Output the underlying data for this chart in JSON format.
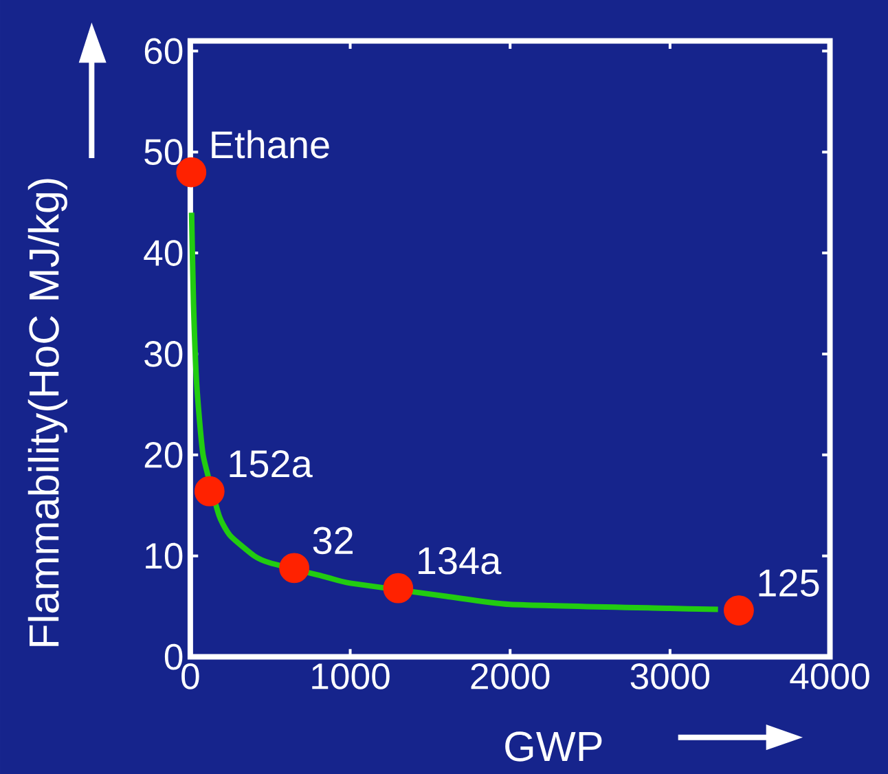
{
  "chart_data": {
    "type": "line",
    "xlabel": "GWP",
    "ylabel": "Flammability(HoC MJ/kg)",
    "xlim": [
      0,
      4000
    ],
    "ylim": [
      0,
      61
    ],
    "xticks": [
      0,
      1000,
      2000,
      3000,
      4000
    ],
    "yticks": [
      0,
      10,
      20,
      30,
      40,
      50,
      60
    ],
    "grid": false,
    "series": [
      {
        "color": "#22cc11",
        "marker": "none",
        "x": [
          8,
          20,
          40,
          80,
          180,
          250,
          400,
          500,
          850,
          1000,
          1600,
          2000,
          3000,
          3300
        ],
        "values": [
          44,
          35,
          27,
          20,
          14,
          12,
          10,
          9.3,
          7.9,
          7.3,
          6,
          5.2,
          4.8,
          4.7
        ]
      },
      {
        "type": "scatter",
        "color": "#ff2200",
        "marker": "circle",
        "x": [
          6,
          120,
          650,
          1300,
          3430
        ],
        "values": [
          48,
          16.4,
          8.8,
          6.8,
          4.6
        ]
      }
    ],
    "annotations": [
      {
        "text": "Ethane",
        "x": 6,
        "y": 48
      },
      {
        "text": "152a",
        "x": 120,
        "y": 16.4
      },
      {
        "text": "32",
        "x": 650,
        "y": 8.8
      },
      {
        "text": "134a",
        "x": 1300,
        "y": 6.8
      },
      {
        "text": "125",
        "x": 3430,
        "y": 4.6
      }
    ]
  }
}
